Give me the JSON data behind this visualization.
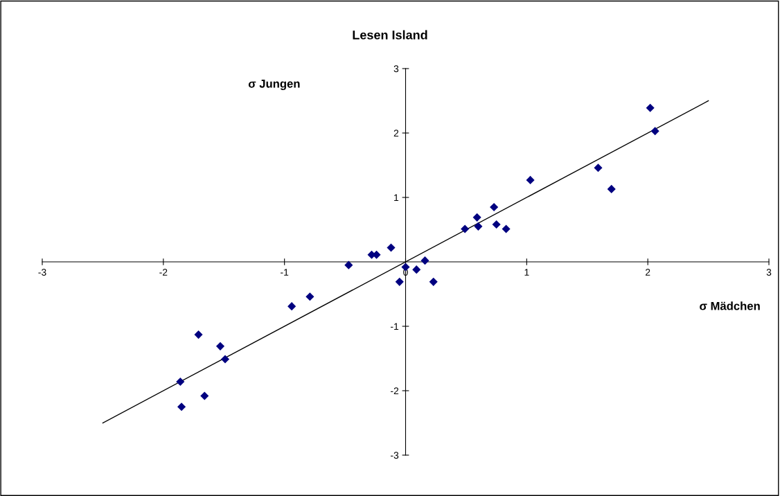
{
  "chart_data": {
    "type": "scatter",
    "title": "Lesen Island",
    "xlabel": "σ Mädchen",
    "ylabel": "σ Jungen",
    "marker": "diamond",
    "grid": false,
    "legend": false,
    "xlim": [
      -3,
      3
    ],
    "ylim": [
      -3,
      3
    ],
    "xticks": [
      -3,
      -2,
      -1,
      0,
      1,
      2,
      3
    ],
    "yticks": [
      -3,
      -2,
      -1,
      1,
      2,
      3
    ],
    "series": [
      {
        "color": "#000080",
        "x": [
          -1.85,
          -1.86,
          -1.71,
          -1.66,
          -1.53,
          -1.49,
          -0.94,
          -0.79,
          -0.47,
          -0.28,
          -0.24,
          -0.12,
          -0.05,
          0.0,
          0.09,
          0.16,
          0.23,
          0.49,
          0.59,
          0.6,
          0.73,
          0.75,
          0.83,
          1.03,
          1.59,
          1.7,
          2.02,
          2.06
        ],
        "values": [
          -2.25,
          -1.86,
          -1.13,
          -2.08,
          -1.31,
          -1.51,
          -0.69,
          -0.54,
          -0.05,
          0.11,
          0.11,
          0.22,
          -0.31,
          -0.08,
          -0.12,
          0.02,
          -0.31,
          0.51,
          0.69,
          0.55,
          0.85,
          0.58,
          0.51,
          1.27,
          1.46,
          1.13,
          2.39,
          2.03
        ]
      },
      {
        "type": "line",
        "color": "#000000",
        "x": [
          -2.5,
          2.5
        ],
        "values": [
          -2.5,
          2.5
        ],
        "marker": "none"
      }
    ]
  }
}
